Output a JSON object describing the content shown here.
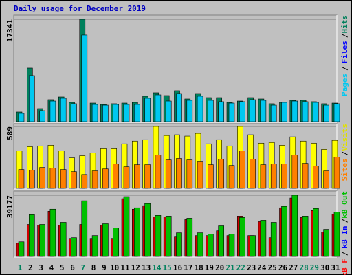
{
  "chart_data": [
    {
      "type": "bar",
      "title": "Daily usage for December 2019",
      "ylim": [
        0,
        17341
      ],
      "yticks": [
        17341
      ],
      "legend": [
        {
          "text": "Pages",
          "color": "#00c8f0"
        },
        {
          "text": "Files",
          "color": "#0000ff"
        },
        {
          "text": "Hits",
          "color": "#00805c"
        }
      ],
      "legend_separator": "/",
      "series": [
        {
          "name": "Hits",
          "color": "#00805c",
          "values": [
            1630,
            9080,
            2210,
            3725,
            4190,
            3260,
            17341,
            3140,
            2910,
            3030,
            3140,
            3260,
            4310,
            4890,
            4420,
            5240,
            3840,
            4770,
            4070,
            4070,
            3260,
            3490,
            4070,
            3840,
            3030,
            3260,
            3610,
            3610,
            3380,
            3030,
            3140
          ]
        },
        {
          "name": "Pages",
          "color": "#00c8f0",
          "values": [
            1400,
            7800,
            1860,
            3490,
            3960,
            3030,
            14670,
            2910,
            2790,
            2910,
            2910,
            2910,
            3960,
            4540,
            3490,
            4770,
            3610,
            4310,
            3610,
            3380,
            3140,
            3380,
            3720,
            3610,
            2790,
            3260,
            3490,
            3380,
            3260,
            2790,
            3030
          ]
        }
      ]
    },
    {
      "type": "bar",
      "ylim": [
        0,
        589
      ],
      "yticks": [
        589
      ],
      "legend": [
        {
          "text": "Sites",
          "color": "#ff8000"
        },
        {
          "text": "Visits",
          "color": "#e0e000"
        }
      ],
      "legend_separator": "/",
      "series": [
        {
          "name": "Visits",
          "color": "#ffff00",
          "values": [
            357,
            397,
            404,
            410,
            357,
            291,
            311,
            338,
            377,
            377,
            424,
            450,
            463,
            589,
            503,
            510,
            497,
            523,
            424,
            463,
            404,
            589,
            510,
            430,
            437,
            410,
            490,
            450,
            430,
            371,
            457
          ]
        },
        {
          "name": "Sites",
          "color": "#ff8000",
          "values": [
            179,
            172,
            199,
            192,
            179,
            159,
            132,
            166,
            185,
            232,
            205,
            225,
            225,
            318,
            271,
            285,
            271,
            258,
            225,
            278,
            218,
            357,
            278,
            225,
            232,
            232,
            318,
            238,
            212,
            166,
            298
          ]
        }
      ]
    },
    {
      "type": "bar",
      "ylim": [
        0,
        39177
      ],
      "yticks": [
        39177
      ],
      "legend": [
        {
          "text": "kB F",
          "color": "#ff0000"
        },
        {
          "text": "kB In",
          "color": "#0000ff"
        },
        {
          "text": "kB Out",
          "color": "#00c000"
        }
      ],
      "legend_separator": "/",
      "categories": [
        "1",
        "2",
        "3",
        "4",
        "5",
        "6",
        "7",
        "8",
        "9",
        "10",
        "11",
        "12",
        "13",
        "14",
        "15",
        "16",
        "17",
        "18",
        "19",
        "20",
        "21",
        "22",
        "23",
        "24",
        "25",
        "26",
        "27",
        "28",
        "29",
        "30",
        "31"
      ],
      "category_colors": [
        "#00805c",
        "#000000",
        "#000000",
        "#000000",
        "#000000",
        "#000000",
        "#00805c",
        "#000000",
        "#000000",
        "#000000",
        "#000000",
        "#000000",
        "#000000",
        "#00805c",
        "#00805c",
        "#000000",
        "#000000",
        "#000000",
        "#000000",
        "#000000",
        "#00805c",
        "#00805c",
        "#000000",
        "#000000",
        "#000000",
        "#000000",
        "#000000",
        "#00805c",
        "#00805c",
        "#000000",
        "#000000"
      ],
      "series": [
        {
          "name": "kB F",
          "color": "#d00000",
          "values": [
            8460,
            20470,
            20020,
            28920,
            20020,
            11570,
            20470,
            11570,
            20020,
            11570,
            36940,
            30260,
            32490,
            25370,
            25370,
            12460,
            23590,
            13350,
            13350,
            16460,
            13350,
            25810,
            13350,
            22250,
            12020,
            31150,
            37380,
            24920,
            29370,
            15580,
            27150
          ]
        },
        {
          "name": "kB Out",
          "color": "#00c000",
          "values": [
            9350,
            26700,
            20470,
            30260,
            21800,
            12020,
            35600,
            13350,
            20900,
            18250,
            38270,
            31150,
            33820,
            26250,
            25810,
            15130,
            24470,
            15130,
            14240,
            19580,
            14240,
            24920,
            13350,
            23140,
            21800,
            32040,
            39177,
            25810,
            30710,
            17360,
            28480
          ]
        }
      ]
    }
  ]
}
